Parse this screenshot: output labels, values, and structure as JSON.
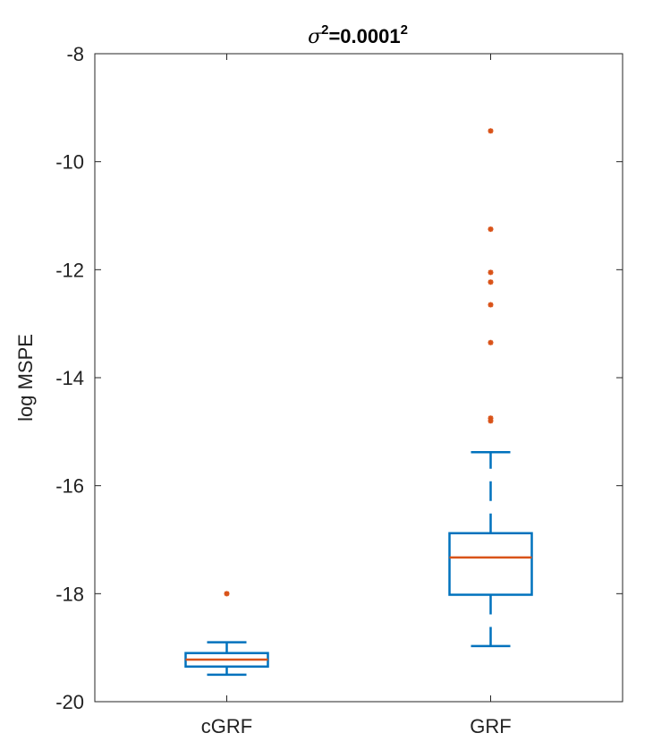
{
  "chart_data": {
    "type": "boxplot",
    "title": {
      "symbol": "σ",
      "symbol_sup": "2",
      "value": "=0.0001",
      "value_sup": "2"
    },
    "xlabel": "",
    "ylabel": "log MSPE",
    "ylim": [
      -20,
      -8
    ],
    "yticks": [
      -20,
      -18,
      -16,
      -14,
      -12,
      -10,
      -8
    ],
    "grid": false,
    "categories": [
      "cGRF",
      "GRF"
    ],
    "boxes": [
      {
        "category": "cGRF",
        "whisker_low": -19.5,
        "q1": -19.35,
        "median": -19.22,
        "q3": -19.1,
        "whisker_high": -18.9,
        "outliers": [
          -18.0
        ]
      },
      {
        "category": "GRF",
        "whisker_low": -18.97,
        "q1": -18.02,
        "median": -17.33,
        "q3": -16.88,
        "whisker_high": -15.38,
        "outliers": [
          -9.43,
          -11.25,
          -12.05,
          -12.23,
          -12.65,
          -13.35,
          -14.75,
          -14.8
        ]
      }
    ],
    "colors": {
      "box": "#0072BD",
      "median": "#D95319",
      "outlier": "#D95319",
      "axis": "#262626"
    }
  }
}
